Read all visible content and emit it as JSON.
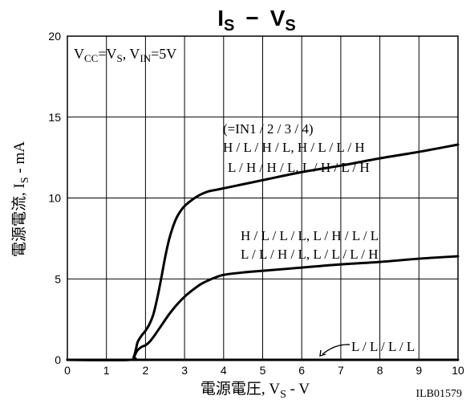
{
  "chart_data": {
    "type": "line",
    "title": {
      "main": "I",
      "sub1": "S",
      "dash": "−",
      "main2": "V",
      "sub2": "S"
    },
    "xlabel": {
      "pre": "電源電圧, V",
      "sub": "S",
      "post": " - V"
    },
    "ylabel": {
      "pre": "電源電流, I",
      "sub": "S",
      "post": " - mA"
    },
    "xlim": [
      0,
      10
    ],
    "ylim": [
      0,
      20
    ],
    "x_ticks": [
      "0",
      "1",
      "2",
      "3",
      "4",
      "5",
      "6",
      "7",
      "8",
      "9",
      "10"
    ],
    "y_ticks": [
      "0",
      "5",
      "10",
      "15",
      "20"
    ],
    "grid": true,
    "condition": {
      "a": "V",
      "a_sub": "CC",
      "b": "=V",
      "b_sub": "S",
      "c": ", V",
      "c_sub": "IN",
      "d": "=5V"
    },
    "code": "ILB01579",
    "series": [
      {
        "labels": [
          "(=IN1 / 2 / 3 / 4)",
          "H / L / H / L, H / L / L / H",
          "L / H / H / L, L / H / L / H"
        ],
        "x": [
          0,
          1.6,
          1.7,
          1.75,
          1.8,
          1.9,
          2.0,
          2.1,
          2.2,
          2.3,
          2.4,
          2.5,
          2.6,
          2.7,
          2.8,
          2.9,
          3.0,
          3.2,
          3.4,
          3.6,
          3.8,
          4.0,
          4.5,
          5,
          6,
          7,
          8,
          9,
          10
        ],
        "y": [
          0,
          0,
          0.2,
          0.6,
          1.1,
          1.5,
          1.8,
          2.2,
          2.8,
          3.8,
          5.0,
          6.3,
          7.4,
          8.2,
          8.8,
          9.2,
          9.5,
          9.9,
          10.2,
          10.4,
          10.5,
          10.6,
          10.85,
          11.1,
          11.6,
          12.0,
          12.45,
          12.85,
          13.3
        ]
      },
      {
        "labels": [
          "H / L / L / L, L / H / L / L",
          "L / L / H / L, L / L / L / H"
        ],
        "x": [
          0,
          1.6,
          1.7,
          1.75,
          1.8,
          1.9,
          2.0,
          2.1,
          2.2,
          2.4,
          2.6,
          2.8,
          3.0,
          3.2,
          3.4,
          3.6,
          3.8,
          4.0,
          4.5,
          5,
          6,
          7,
          8,
          9,
          10
        ],
        "y": [
          0,
          0,
          0.15,
          0.4,
          0.6,
          0.8,
          0.9,
          1.1,
          1.4,
          2.1,
          2.8,
          3.4,
          3.9,
          4.3,
          4.65,
          4.9,
          5.1,
          5.25,
          5.4,
          5.5,
          5.7,
          5.9,
          6.05,
          6.25,
          6.4
        ]
      },
      {
        "labels": [
          "L / L / L / L"
        ],
        "x": [
          0,
          10
        ],
        "y": [
          0,
          0
        ]
      }
    ]
  }
}
